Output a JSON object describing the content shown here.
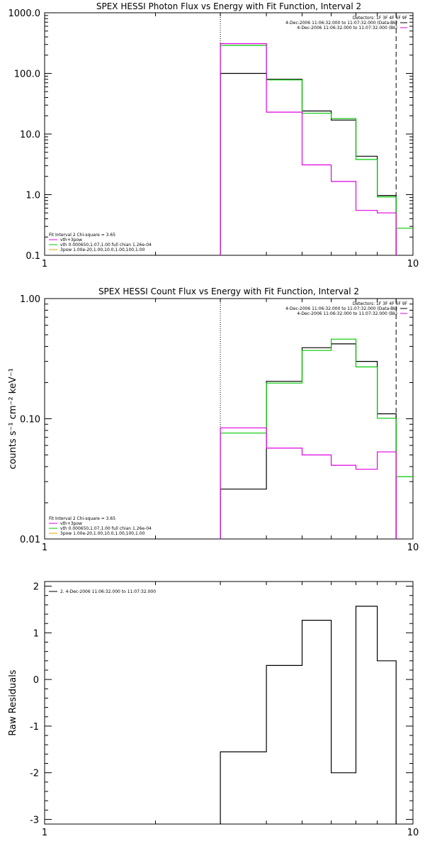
{
  "chart_data": [
    {
      "type": "line",
      "title": "SPEX HESSI Photon Flux vs Energy with Fit Function, Interval 2",
      "xlabel": "",
      "ylabel": "",
      "xscale": "log",
      "yscale": "log",
      "xlim": [
        1,
        10
      ],
      "ylim": [
        0.1,
        1000
      ],
      "x_tick_labels": [
        "1",
        "10"
      ],
      "y_tick_labels": [
        "0.1",
        "1.0",
        "10.0",
        "100.0",
        "1000.0"
      ],
      "bin_edges": [
        3,
        4,
        5,
        6,
        7,
        8,
        9,
        10
      ],
      "series": [
        {
          "name": "",
          "color": "#000000",
          "values": [
            100,
            80,
            24,
            17,
            4.3,
            0.97,
            null
          ]
        },
        {
          "name": "",
          "color": "#00c800",
          "values": [
            290,
            78,
            22,
            18,
            3.8,
            0.92,
            0.28
          ]
        },
        {
          "name": "",
          "color": "#e000e0",
          "values": [
            310,
            23,
            3.1,
            1.65,
            0.55,
            0.5,
            null
          ]
        }
      ],
      "vlines": [
        {
          "x": 3.0,
          "style": "dotted"
        },
        {
          "x": 9.0,
          "style": "dashed"
        }
      ],
      "legend_right": [
        {
          "text": "Detectors: 1F 3F 4F 6F 9F",
          "line_color": ""
        },
        {
          "text": "4-Dec-2006 11:06:32.000 to 11:07:32.000 (Data-Bk)",
          "line_color": "#000000"
        },
        {
          "text": "4-Dec-2006 11:06:32.000 to 11:07:32.000 (Bk)",
          "line_color": "#e000e0"
        }
      ],
      "legend_left": [
        {
          "text": "Fit Interval  2   Chi-square = 3.65",
          "line_color": ""
        },
        {
          "text": "vth+3pow",
          "line_color": "#e000e0"
        },
        {
          "text": "vth 0.000650,1.07,1.00  full chian 1.26e-04",
          "line_color": "#00c800"
        },
        {
          "text": "3pow 1.00e-20,1.00,10.0,1.00,100,1.00",
          "line_color": "#e0a000"
        }
      ]
    },
    {
      "type": "line",
      "title": "SPEX HESSI Count Flux vs Energy with Fit Function, Interval 2",
      "xlabel": "",
      "ylabel": "counts s⁻¹ cm⁻² keV⁻¹",
      "xscale": "log",
      "yscale": "log",
      "xlim": [
        1,
        10
      ],
      "ylim": [
        0.01,
        1.0
      ],
      "x_tick_labels": [
        "1",
        "10"
      ],
      "y_tick_labels": [
        "0.01",
        "0.10",
        "1.00"
      ],
      "bin_edges": [
        3,
        4,
        5,
        6,
        7,
        8,
        9,
        10
      ],
      "series": [
        {
          "name": "",
          "color": "#000000",
          "values": [
            0.026,
            0.205,
            0.39,
            0.42,
            0.3,
            0.11,
            null
          ]
        },
        {
          "name": "",
          "color": "#00c800",
          "values": [
            0.076,
            0.198,
            0.37,
            0.46,
            0.27,
            0.101,
            0.033
          ]
        },
        {
          "name": "",
          "color": "#e000e0",
          "values": [
            0.084,
            0.057,
            0.05,
            0.041,
            0.038,
            0.053,
            null
          ]
        }
      ],
      "vlines": [
        {
          "x": 3.0,
          "style": "dotted"
        },
        {
          "x": 9.0,
          "style": "dashed"
        }
      ],
      "legend_right": [
        {
          "text": "Detectors: 1F 3F 4F 6F 9F",
          "line_color": ""
        },
        {
          "text": "4-Dec-2006 11:06:32.000 to 11:07:32.000 (Data-Bk)",
          "line_color": "#000000"
        },
        {
          "text": "4-Dec-2006 11:06:32.000 to 11:07:32.000 (Bk)",
          "line_color": "#e000e0"
        }
      ],
      "legend_left": [
        {
          "text": "Fit Interval  2   Chi-square = 3.65",
          "line_color": ""
        },
        {
          "text": "vth+3pow",
          "line_color": "#e000e0"
        },
        {
          "text": "vth 0.000650,1.07,1.00  full chian 1.26e-04",
          "line_color": "#00c800"
        },
        {
          "text": "3pow 1.00e-20,1.00,10.0,1.00,100,1.00",
          "line_color": "#e0a000"
        }
      ]
    },
    {
      "type": "line",
      "title": "",
      "xlabel": "",
      "ylabel": "Raw Residuals",
      "xscale": "log",
      "yscale": "linear",
      "xlim": [
        1,
        10
      ],
      "ylim": [
        -3.1,
        2.1
      ],
      "x_tick_labels": [
        "1",
        "10"
      ],
      "y_ticks": [
        -3,
        -2,
        -1,
        0,
        1,
        2
      ],
      "y_tick_labels": [
        "-3",
        "-2",
        "-1",
        "0",
        "1",
        "2"
      ],
      "bin_edges": [
        3,
        4,
        5,
        6,
        7,
        8,
        9
      ],
      "series": [
        {
          "name": "",
          "color": "#000000",
          "values": [
            -1.55,
            0.3,
            1.27,
            -2.0,
            1.57,
            0.4
          ]
        }
      ],
      "vlines": [],
      "legend_right": [],
      "legend_left": [
        {
          "text": "2.  4-Dec-2006 11:06:32.000 to 11:07:32.000",
          "line_color": "#000000"
        }
      ]
    }
  ]
}
